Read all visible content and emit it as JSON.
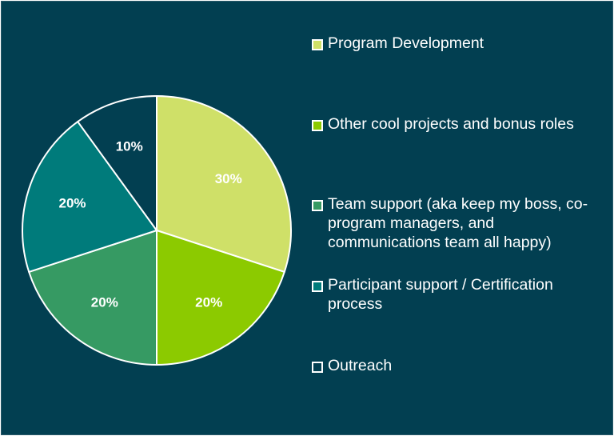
{
  "chart_data": {
    "type": "pie",
    "title": "",
    "categories": [
      "Program Development",
      "Other cool projects and bonus roles",
      "Team support (aka keep my boss, co-program managers, and communications team all happy)",
      "Participant support / Certification process",
      "Outreach"
    ],
    "values": [
      30,
      20,
      20,
      20,
      10
    ],
    "labels": [
      "30%",
      "20%",
      "20%",
      "20%",
      "10%"
    ],
    "colors": [
      "#cfe068",
      "#8cca00",
      "#369a63",
      "#007b7b",
      "#023f51"
    ],
    "legend_position": "right"
  }
}
